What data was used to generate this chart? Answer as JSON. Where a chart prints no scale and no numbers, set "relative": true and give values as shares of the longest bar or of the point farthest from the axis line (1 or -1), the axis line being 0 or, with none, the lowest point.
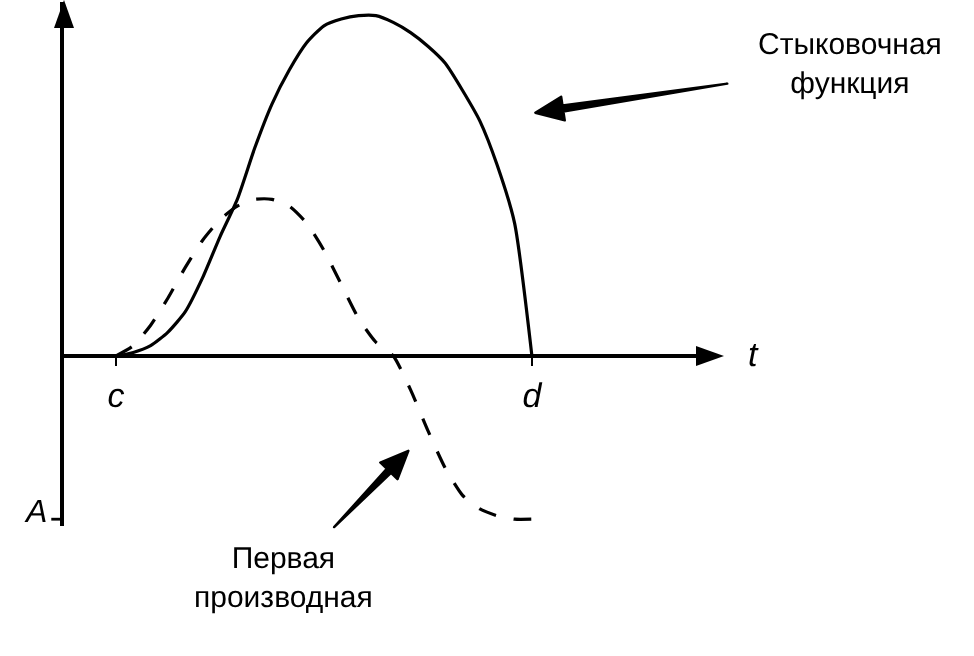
{
  "chart_data": {
    "type": "line",
    "relative": true,
    "xlabel": "t",
    "categories": [
      null,
      null,
      null,
      "c",
      null,
      null,
      null,
      null,
      null,
      null,
      null,
      null,
      null,
      null,
      null,
      null,
      null,
      null,
      null,
      null,
      null,
      null,
      null,
      null,
      null,
      null,
      null,
      "d",
      null,
      null,
      null,
      null,
      null,
      null,
      null,
      null,
      null
    ],
    "series": [
      {
        "color": "#000000",
        "line_style": "solid",
        "values": [
          0,
          0,
          0,
          0,
          0.01,
          0.03,
          0.07,
          0.13,
          0.23,
          0.35,
          0.46,
          0.61,
          0.74,
          0.84,
          0.92,
          0.97,
          0.99,
          1,
          1,
          0.98,
          0.95,
          0.91,
          0.86,
          0.78,
          0.69,
          0.56,
          0.39,
          0,
          null,
          null,
          null,
          null,
          null,
          null,
          null,
          null,
          null
        ]
      },
      {
        "color": "#000000",
        "line_style": "dashed",
        "values": [
          null,
          null,
          null,
          0,
          0.03,
          0.09,
          0.17,
          0.26,
          0.34,
          0.4,
          0.44,
          0.46,
          0.46,
          0.44,
          0.39,
          0.31,
          0.21,
          0.11,
          0.04,
          0,
          -0.1,
          -0.22,
          -0.33,
          -0.41,
          -0.45,
          -0.47,
          -0.48,
          -0.48,
          null,
          null,
          null,
          null,
          null,
          null,
          null,
          null,
          null
        ]
      }
    ],
    "ref_lines": [
      {
        "axis": "y",
        "value": -0.48,
        "label": "A"
      }
    ],
    "annotations": [
      "Стыковочная функция",
      "Первая производная"
    ],
    "grid": false,
    "marker": "none"
  }
}
